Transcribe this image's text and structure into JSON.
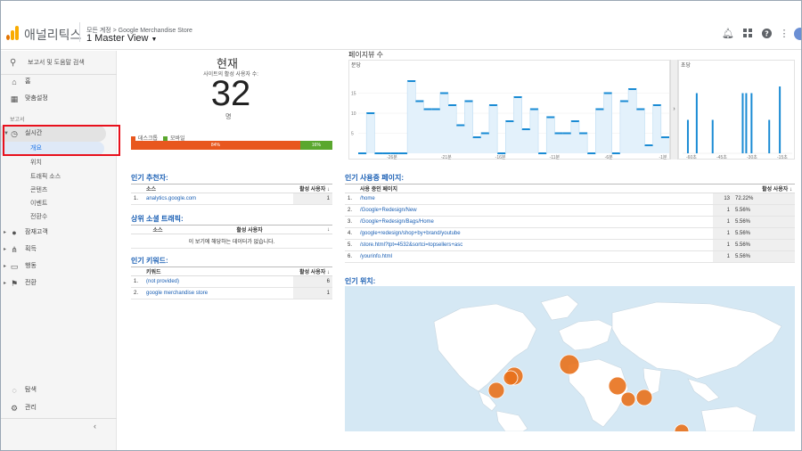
{
  "header": {
    "app_name": "애널리틱스",
    "breadcrumb": "모든 계정 > Google Merchandise Store",
    "view_title": "1 Master View",
    "icons": [
      "bell-icon",
      "apps-grid-icon",
      "help-icon",
      "more-vert-icon"
    ],
    "logo_colors": [
      "#f9ab00",
      "#e37400"
    ]
  },
  "sidebar": {
    "search_label": "보고서 및 도움말 검색",
    "home": "홈",
    "custom": "맞춤설정",
    "reports_section": "보고서",
    "realtime": "실시간",
    "realtime_sub": [
      "개요",
      "위치",
      "트래픽 소스",
      "콘텐츠",
      "이벤트",
      "전환수"
    ],
    "audience": "잠재고객",
    "acquisition": "획득",
    "behavior": "행동",
    "conversions": "전환",
    "discover": "탐색",
    "admin": "관리",
    "collapse_icon": "chevron-left-icon"
  },
  "now": {
    "title": "현재",
    "subtitle": "사이트의 활성 사용자 수:",
    "count": "32",
    "unit": "명",
    "desktop_label": "데스크톱",
    "mobile_label": "모바일",
    "desktop_pct": "84%",
    "mobile_pct": "16%",
    "desktop_share": 0.84,
    "desktop_color": "#e8571e",
    "mobile_color": "#5aa72e"
  },
  "referrers": {
    "title": "인기 추천자:",
    "col_source": "소스",
    "col_users": "활성 사용자 ↓",
    "rows": [
      {
        "idx": "1.",
        "source": "analytics.google.com",
        "users": "1"
      }
    ]
  },
  "social": {
    "title": "상위 소셜 트래픽:",
    "col_source": "소스",
    "col_users": "활성 사용자",
    "sort": "↓",
    "empty": "이 보기에 해당하는 데이터가 없습니다."
  },
  "keywords": {
    "title": "인기 키워드:",
    "col_kw": "키워드",
    "col_users": "활성 사용자 ↓",
    "rows": [
      {
        "idx": "1.",
        "kw": "(not provided)",
        "users": "6"
      },
      {
        "idx": "2.",
        "kw": "google merchandise store",
        "users": "1"
      }
    ]
  },
  "pageviews": {
    "title": "페이지뷰 수",
    "per_minute": "분당",
    "per_second": "초당",
    "handle": "›",
    "minute_chart": {
      "y_ticks": [
        "15",
        "10",
        "5"
      ],
      "x_ticks": [
        "-26분",
        "-21분",
        "-16분",
        "-11분",
        "-6분",
        "-1분"
      ],
      "values": [
        0,
        10,
        0,
        0,
        0,
        0,
        18,
        13,
        11,
        11,
        15,
        12,
        7,
        13,
        4,
        5,
        12,
        0,
        8,
        14,
        6,
        11,
        0,
        9,
        5,
        5,
        8,
        5,
        0,
        11,
        15,
        0,
        13,
        16,
        11,
        2,
        12,
        4
      ]
    },
    "second_chart": {
      "x_ticks": [
        "-60초",
        "-45초",
        "-30초",
        "-15초"
      ],
      "events": [
        {
          "t": -59,
          "v": 5
        },
        {
          "t": -54,
          "v": 9
        },
        {
          "t": -45,
          "v": 5
        },
        {
          "t": -28,
          "v": 9
        },
        {
          "t": -26,
          "v": 9
        },
        {
          "t": -23,
          "v": 9
        },
        {
          "t": -13,
          "v": 5
        },
        {
          "t": -7,
          "v": 10
        }
      ]
    }
  },
  "active_pages": {
    "title": "인기 사용중 페이지:",
    "col_page": "사용 중인 페이지",
    "col_users": "활성 사용자 ↓",
    "rows": [
      {
        "idx": "1.",
        "page": "/home",
        "users": "13",
        "pct": "72.22%"
      },
      {
        "idx": "2.",
        "page": "/Google+Redesign/New",
        "users": "1",
        "pct": "5.56%"
      },
      {
        "idx": "3.",
        "page": "/Google+Redesign/Bags/Home",
        "users": "1",
        "pct": "5.56%"
      },
      {
        "idx": "4.",
        "page": "/google+redesign/shop+by+brand/youtube",
        "users": "1",
        "pct": "5.56%"
      },
      {
        "idx": "5.",
        "page": "/store.html?tpt=4532&sortci=topsellers+asc",
        "users": "1",
        "pct": "5.56%"
      },
      {
        "idx": "6.",
        "page": "/yourinfo.html",
        "users": "1",
        "pct": "5.56%"
      }
    ]
  },
  "locations": {
    "title": "인기 위치:",
    "bubble_color": "#e8711c",
    "ocean_color": "#d5e8f4",
    "land_color": "#ffffff"
  }
}
